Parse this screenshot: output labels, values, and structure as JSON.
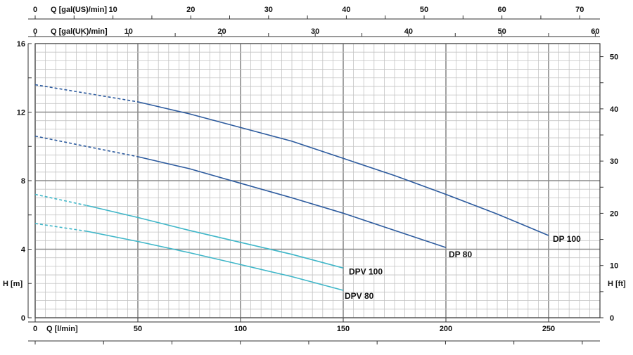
{
  "chart_data": {
    "type": "line",
    "x": {
      "label": "Q [l/min]",
      "range": [
        0,
        275
      ],
      "tick_values": [
        0,
        50,
        100,
        150,
        200,
        250
      ],
      "tick_labels": [
        "0",
        "50",
        "100",
        "150",
        "200",
        "250"
      ]
    },
    "x_secondary_top": {
      "label": "Q [gal(US)/min]",
      "range": [
        0,
        72.6
      ],
      "tick_labels": [
        "0",
        "10",
        "20",
        "30",
        "40",
        "50",
        "60",
        "70"
      ]
    },
    "x_secondary_middle": {
      "label": "Q [gal(UK)/min]",
      "range": [
        0,
        60.5
      ],
      "tick_labels": [
        "0",
        "10",
        "20",
        "30",
        "40",
        "50",
        "60"
      ]
    },
    "y": {
      "label": "H [m]",
      "range": [
        0,
        16
      ],
      "tick_labels": [
        "0",
        "4",
        "8",
        "12",
        "16"
      ]
    },
    "y_secondary": {
      "label": "H [ft]",
      "range": [
        0,
        52.5
      ],
      "tick_labels": [
        "0",
        "10",
        "20",
        "30",
        "40",
        "50"
      ]
    },
    "grid": true,
    "series": [
      {
        "name": "DP 100",
        "color": "#2d5b9e",
        "dashed_until_x": 50,
        "points": [
          [
            0,
            13.6
          ],
          [
            25,
            13.1
          ],
          [
            50,
            12.6
          ],
          [
            75,
            11.9
          ],
          [
            100,
            11.1
          ],
          [
            125,
            10.3
          ],
          [
            150,
            9.3
          ],
          [
            175,
            8.3
          ],
          [
            200,
            7.2
          ],
          [
            225,
            6.05
          ],
          [
            250,
            4.8
          ]
        ]
      },
      {
        "name": "DP 80",
        "color": "#2d5b9e",
        "dashed_until_x": 50,
        "points": [
          [
            0,
            10.6
          ],
          [
            25,
            10.0
          ],
          [
            50,
            9.4
          ],
          [
            75,
            8.7
          ],
          [
            100,
            7.85
          ],
          [
            125,
            7.0
          ],
          [
            150,
            6.1
          ],
          [
            175,
            5.1
          ],
          [
            200,
            4.1
          ]
        ]
      },
      {
        "name": "DPV 100",
        "color": "#3fb6c8",
        "dashed_until_x": 25,
        "points": [
          [
            0,
            7.2
          ],
          [
            25,
            6.55
          ],
          [
            50,
            5.85
          ],
          [
            75,
            5.1
          ],
          [
            100,
            4.4
          ],
          [
            125,
            3.7
          ],
          [
            150,
            2.9
          ]
        ]
      },
      {
        "name": "DPV 80",
        "color": "#3fb6c8",
        "dashed_until_x": 25,
        "points": [
          [
            0,
            5.5
          ],
          [
            25,
            5.05
          ],
          [
            50,
            4.45
          ],
          [
            75,
            3.8
          ],
          [
            100,
            3.1
          ],
          [
            125,
            2.4
          ],
          [
            150,
            1.6
          ]
        ]
      }
    ]
  }
}
